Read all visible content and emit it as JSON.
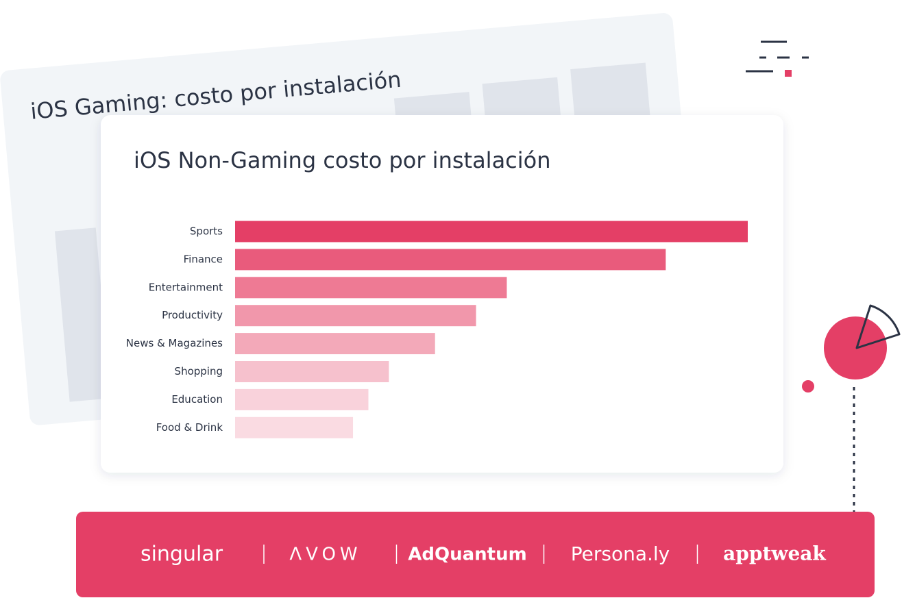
{
  "background_card": {
    "title": "iOS Gaming: costo por instalación"
  },
  "chart_data": {
    "type": "bar",
    "orientation": "horizontal",
    "title": "iOS Non-Gaming costo por instalación",
    "categories": [
      "Sports",
      "Finance",
      "Entertainment",
      "Productivity",
      "News & Magazines",
      "Shopping",
      "Education",
      "Food & Drink"
    ],
    "values": [
      100,
      84,
      53,
      47,
      39,
      30,
      26,
      23
    ],
    "colors": [
      "#e43f66",
      "#e95b7c",
      "#ee7a94",
      "#f197ab",
      "#f3a9b9",
      "#f6c1cd",
      "#f9d2db",
      "#fadbe2"
    ]
  },
  "partners": [
    "singular",
    "ΛVOW",
    "AdQuantum",
    "Persona.ly",
    "apptweak"
  ]
}
